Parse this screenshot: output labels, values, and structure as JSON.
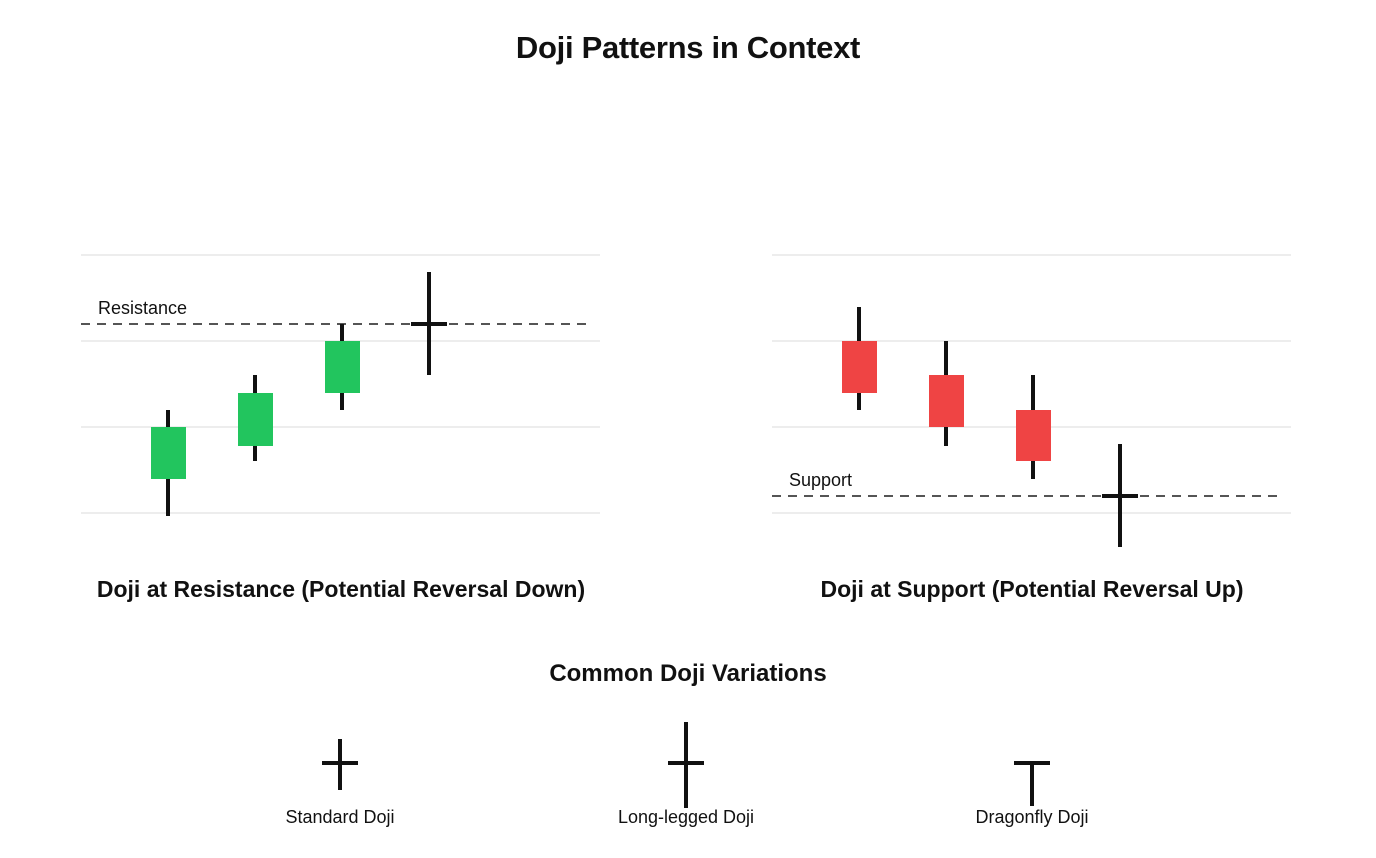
{
  "page": {
    "title": "Doji Patterns in Context"
  },
  "colors": {
    "bullish": "#22c55e",
    "bearish": "#ef4444",
    "line": "#111111",
    "level_dash": "#555555",
    "gridline": "#ededed",
    "text": "#111111",
    "background": "#ffffff"
  },
  "chart_data": [
    {
      "type": "candlestick",
      "title": "Doji at Resistance (Potential Reversal Down)",
      "xlabel": "",
      "ylabel": "",
      "ylim": [
        5,
        42
      ],
      "gridlines": [
        10,
        20,
        30,
        40
      ],
      "grid": true,
      "annotation": {
        "label": "Resistance",
        "level": 32,
        "style": "dashed"
      },
      "candles": [
        {
          "open": 14,
          "high": 22,
          "low": 9.7,
          "close": 20,
          "direction": "bullish"
        },
        {
          "open": 17.8,
          "high": 26,
          "low": 16,
          "close": 24,
          "direction": "bullish"
        },
        {
          "open": 24,
          "high": 32,
          "low": 22,
          "close": 30,
          "direction": "bullish"
        },
        {
          "open": 32,
          "high": 38,
          "low": 26,
          "close": 32,
          "direction": "doji"
        }
      ]
    },
    {
      "type": "candlestick",
      "title": "Doji at Support (Potential Reversal Up)",
      "xlabel": "",
      "ylabel": "",
      "ylim": [
        5,
        42
      ],
      "gridlines": [
        10,
        20,
        30,
        40
      ],
      "grid": true,
      "annotation": {
        "label": "Support",
        "level": 12,
        "style": "dashed"
      },
      "candles": [
        {
          "open": 30,
          "high": 34,
          "low": 22,
          "close": 24,
          "direction": "bearish"
        },
        {
          "open": 26,
          "high": 30,
          "low": 17.8,
          "close": 20,
          "direction": "bearish"
        },
        {
          "open": 22,
          "high": 26,
          "low": 14,
          "close": 16,
          "direction": "bearish"
        },
        {
          "open": 12,
          "high": 18,
          "low": 6,
          "close": 12,
          "direction": "doji"
        }
      ]
    }
  ],
  "variations": {
    "heading": "Common Doji Variations",
    "items": [
      {
        "name": "Standard Doji",
        "glyph": "cross",
        "upper_shadow": 24,
        "lower_shadow": 27
      },
      {
        "name": "Long-legged Doji",
        "glyph": "long-cross",
        "upper_shadow": 41,
        "lower_shadow": 45
      },
      {
        "name": "Dragonfly Doji",
        "glyph": "t-shape",
        "upper_shadow": 0,
        "lower_shadow": 43
      }
    ]
  }
}
